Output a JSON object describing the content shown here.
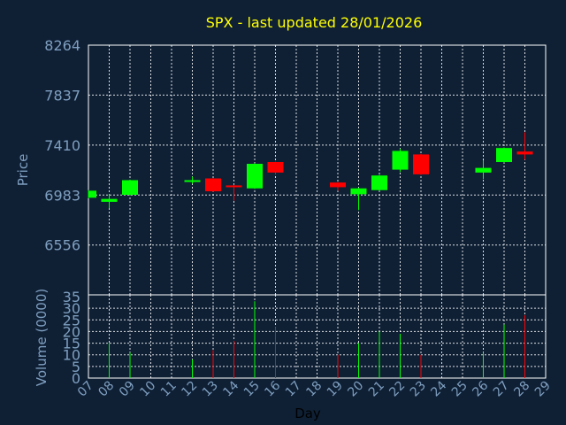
{
  "chart_data": {
    "type": "candlestick",
    "title": "SPX - last updated 28/01/2026",
    "price_axis": {
      "label": "Price",
      "ylim": [
        6130,
        8264
      ],
      "ticks": [
        8264,
        7837,
        7410,
        6983,
        6556
      ]
    },
    "volume_axis": {
      "label": "Volume (0000)",
      "ylim": [
        0,
        35
      ],
      "ticks": [
        35,
        30,
        25,
        20,
        15,
        10,
        5,
        0
      ]
    },
    "xlabel": "Day",
    "x_range": [
      7,
      29
    ],
    "day_ticks": [
      "07",
      "08",
      "09",
      "10",
      "11",
      "12",
      "13",
      "14",
      "15",
      "16",
      "17",
      "18",
      "19",
      "20",
      "21",
      "22",
      "23",
      "24",
      "25",
      "26",
      "27",
      "28",
      "29"
    ],
    "colors": {
      "up": "#00ff00",
      "down": "#ff0000",
      "background": "#0f2035",
      "title": "#ffff00",
      "axis_text": "#7f9fc0"
    },
    "candles": [
      {
        "day": 7,
        "open": 6960,
        "close": 7020,
        "high": 7025,
        "low": 6955,
        "volume": 0
      },
      {
        "day": 8,
        "open": 6925,
        "close": 6950,
        "high": 6990,
        "low": 6870,
        "volume": 15
      },
      {
        "day": 9,
        "open": 6985,
        "close": 7110,
        "high": 7115,
        "low": 6980,
        "volume": 11
      },
      {
        "day": 12,
        "open": 7100,
        "close": 7110,
        "high": 7140,
        "low": 7080,
        "volume": 8
      },
      {
        "day": 13,
        "open": 7125,
        "close": 7015,
        "high": 7128,
        "low": 7012,
        "volume": 12
      },
      {
        "day": 14,
        "open": 7065,
        "close": 7060,
        "high": 7070,
        "low": 6935,
        "volume": 16
      },
      {
        "day": 15,
        "open": 7040,
        "close": 7250,
        "high": 7255,
        "low": 7035,
        "volume": 33
      },
      {
        "day": 16,
        "open": 7265,
        "close": 7175,
        "high": 7268,
        "low": 7160,
        "volume": 22
      },
      {
        "day": 19,
        "open": 7090,
        "close": 7050,
        "high": 7095,
        "low": 7020,
        "volume": 10
      },
      {
        "day": 20,
        "open": 6990,
        "close": 7040,
        "high": 7045,
        "low": 6855,
        "volume": 15
      },
      {
        "day": 21,
        "open": 7025,
        "close": 7150,
        "high": 7155,
        "low": 7020,
        "volume": 20
      },
      {
        "day": 22,
        "open": 7200,
        "close": 7360,
        "high": 7380,
        "low": 7180,
        "volume": 19
      },
      {
        "day": 23,
        "open": 7330,
        "close": 7160,
        "high": 7335,
        "low": 7155,
        "volume": 10
      },
      {
        "day": 26,
        "open": 7175,
        "close": 7215,
        "high": 7280,
        "low": 7120,
        "volume": 11
      },
      {
        "day": 27,
        "open": 7265,
        "close": 7385,
        "high": 7390,
        "low": 7260,
        "volume": 23
      },
      {
        "day": 28,
        "open": 7355,
        "close": 7330,
        "high": 7520,
        "low": 7285,
        "volume": 27
      }
    ]
  }
}
